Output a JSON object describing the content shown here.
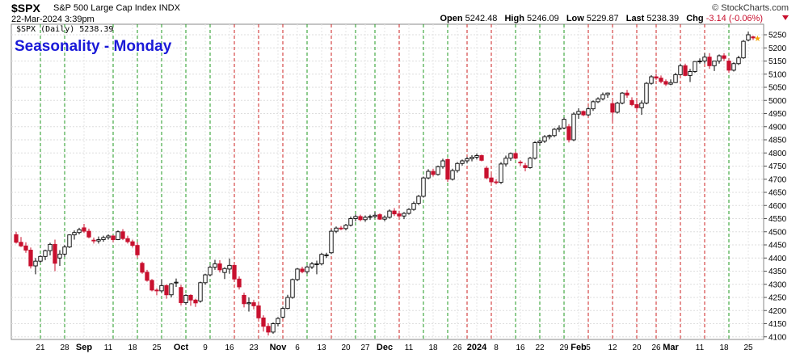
{
  "header": {
    "symbol": "$SPX",
    "description": "S&P 500 Large Cap Index  INDX",
    "datetime": "22-Mar-2024 3:39pm",
    "brand": "© StockCharts.com",
    "open_label": "Open",
    "open": "5242.48",
    "high_label": "High",
    "high": "5246.09",
    "low_label": "Low",
    "low": "5229.87",
    "last_label": "Last",
    "last": "5238.39",
    "chg_label": "Chg",
    "chg": "-3.14 (-0.06%)"
  },
  "chart_data": {
    "type": "candlestick",
    "title": "Seasonality - Monday",
    "legend": "$SPX (Daily) 5238.39",
    "ylim": [
      4090,
      5290
    ],
    "y_ticks": [
      4100,
      4150,
      4200,
      4250,
      4300,
      4350,
      4400,
      4450,
      4500,
      4550,
      4600,
      4650,
      4700,
      4750,
      4800,
      4850,
      4900,
      4950,
      5000,
      5050,
      5100,
      5150,
      5200,
      5250
    ],
    "x_labels": [
      {
        "i": 5,
        "label": "21"
      },
      {
        "i": 10,
        "label": "28"
      },
      {
        "i": 14,
        "label": "Sep",
        "bold": true
      },
      {
        "i": 19,
        "label": "11"
      },
      {
        "i": 24,
        "label": "18"
      },
      {
        "i": 29,
        "label": "25"
      },
      {
        "i": 34,
        "label": "Oct",
        "bold": true
      },
      {
        "i": 39,
        "label": "9"
      },
      {
        "i": 44,
        "label": "16"
      },
      {
        "i": 49,
        "label": "23"
      },
      {
        "i": 54,
        "label": "Nov",
        "bold": true
      },
      {
        "i": 58,
        "label": "6"
      },
      {
        "i": 63,
        "label": "13"
      },
      {
        "i": 68,
        "label": "20"
      },
      {
        "i": 72,
        "label": "27"
      },
      {
        "i": 76,
        "label": "Dec",
        "bold": true
      },
      {
        "i": 81,
        "label": "11"
      },
      {
        "i": 86,
        "label": "18"
      },
      {
        "i": 91,
        "label": "26"
      },
      {
        "i": 95,
        "label": "2024",
        "bold": true
      },
      {
        "i": 99,
        "label": "8"
      },
      {
        "i": 104,
        "label": "16"
      },
      {
        "i": 108,
        "label": "22"
      },
      {
        "i": 113,
        "label": "29"
      },
      {
        "i": 116,
        "label": "Feb",
        "bold": true
      },
      {
        "i": 118,
        "label": "5"
      },
      {
        "i": 123,
        "label": "12"
      },
      {
        "i": 128,
        "label": "20"
      },
      {
        "i": 132,
        "label": "26"
      },
      {
        "i": 135,
        "label": "Mar",
        "bold": true
      },
      {
        "i": 141,
        "label": "11"
      },
      {
        "i": 146,
        "label": "18"
      },
      {
        "i": 151,
        "label": "25"
      }
    ],
    "monday_lines": [
      {
        "i": 5,
        "color": "green"
      },
      {
        "i": 10,
        "color": "green"
      },
      {
        "i": 20,
        "color": "green"
      },
      {
        "i": 25,
        "color": "green"
      },
      {
        "i": 30,
        "color": "green"
      },
      {
        "i": 35,
        "color": "green"
      },
      {
        "i": 40,
        "color": "green"
      },
      {
        "i": 45,
        "color": "red"
      },
      {
        "i": 50,
        "color": "red"
      },
      {
        "i": 55,
        "color": "red"
      },
      {
        "i": 60,
        "color": "green"
      },
      {
        "i": 65,
        "color": "red"
      },
      {
        "i": 70,
        "color": "green"
      },
      {
        "i": 74,
        "color": "green"
      },
      {
        "i": 79,
        "color": "red"
      },
      {
        "i": 84,
        "color": "green"
      },
      {
        "i": 89,
        "color": "green"
      },
      {
        "i": 93,
        "color": "red"
      },
      {
        "i": 98,
        "color": "red"
      },
      {
        "i": 103,
        "color": "green"
      },
      {
        "i": 108,
        "color": "green"
      },
      {
        "i": 113,
        "color": "green"
      },
      {
        "i": 118,
        "color": "red"
      },
      {
        "i": 123,
        "color": "red"
      },
      {
        "i": 128,
        "color": "red"
      },
      {
        "i": 132,
        "color": "red"
      },
      {
        "i": 137,
        "color": "red"
      },
      {
        "i": 142,
        "color": "red"
      },
      {
        "i": 147,
        "color": "green"
      }
    ],
    "candles": [
      [
        4489,
        4500,
        4455,
        4460
      ],
      [
        4460,
        4480,
        4442,
        4446
      ],
      [
        4446,
        4460,
        4420,
        4430
      ],
      [
        4430,
        4440,
        4360,
        4370
      ],
      [
        4370,
        4400,
        4338,
        4388
      ],
      [
        4388,
        4410,
        4382,
        4406
      ],
      [
        4406,
        4432,
        4392,
        4428
      ],
      [
        4428,
        4458,
        4410,
        4452
      ],
      [
        4452,
        4470,
        4350,
        4380
      ],
      [
        4400,
        4430,
        4370,
        4415
      ],
      [
        4415,
        4450,
        4405,
        4442
      ],
      [
        4442,
        4490,
        4438,
        4488
      ],
      [
        4488,
        4505,
        4470,
        4497
      ],
      [
        4497,
        4515,
        4490,
        4508
      ],
      [
        4515,
        4530,
        4495,
        4502
      ],
      [
        4502,
        4512,
        4475,
        4480
      ],
      [
        4468,
        4478,
        4455,
        4465
      ],
      [
        4465,
        4482,
        4455,
        4470
      ],
      [
        4470,
        4485,
        4462,
        4478
      ],
      [
        4478,
        4490,
        4470,
        4484
      ],
      [
        4484,
        4487,
        4460,
        4470
      ],
      [
        4470,
        4505,
        4468,
        4500
      ],
      [
        4500,
        4510,
        4468,
        4474
      ],
      [
        4474,
        4485,
        4455,
        4462
      ],
      [
        4462,
        4470,
        4440,
        4448
      ],
      [
        4448,
        4460,
        4400,
        4412
      ],
      [
        4380,
        4386,
        4340,
        4346
      ],
      [
        4346,
        4355,
        4310,
        4315
      ],
      [
        4315,
        4320,
        4273,
        4278
      ],
      [
        4278,
        4285,
        4258,
        4275
      ],
      [
        4275,
        4318,
        4268,
        4295
      ],
      [
        4295,
        4300,
        4245,
        4260
      ],
      [
        4260,
        4305,
        4250,
        4302
      ],
      [
        4305,
        4322,
        4290,
        4308
      ],
      [
        4288,
        4298,
        4220,
        4230
      ],
      [
        4230,
        4262,
        4222,
        4258
      ],
      [
        4258,
        4262,
        4218,
        4240
      ],
      [
        4240,
        4245,
        4214,
        4229
      ],
      [
        4236,
        4310,
        4230,
        4306
      ],
      [
        4306,
        4340,
        4298,
        4336
      ],
      [
        4336,
        4372,
        4330,
        4365
      ],
      [
        4365,
        4393,
        4355,
        4378
      ],
      [
        4378,
        4392,
        4345,
        4355
      ],
      [
        4345,
        4365,
        4320,
        4360
      ],
      [
        4358,
        4398,
        4340,
        4372
      ],
      [
        4372,
        4380,
        4310,
        4320
      ],
      [
        4320,
        4330,
        4280,
        4290
      ],
      [
        4258,
        4268,
        4212,
        4226
      ],
      [
        4226,
        4250,
        4196,
        4230
      ],
      [
        4230,
        4240,
        4205,
        4218
      ],
      [
        4218,
        4230,
        4166,
        4172
      ],
      [
        4172,
        4182,
        4120,
        4140
      ],
      [
        4140,
        4152,
        4105,
        4118
      ],
      [
        4118,
        4155,
        4112,
        4150
      ],
      [
        4150,
        4175,
        4140,
        4170
      ],
      [
        4175,
        4215,
        4170,
        4208
      ],
      [
        4208,
        4260,
        4205,
        4250
      ],
      [
        4250,
        4322,
        4245,
        4318
      ],
      [
        4318,
        4362,
        4312,
        4358
      ],
      [
        4358,
        4367,
        4342,
        4348
      ],
      [
        4348,
        4372,
        4340,
        4366
      ],
      [
        4366,
        4385,
        4358,
        4378
      ],
      [
        4378,
        4390,
        4338,
        4378
      ],
      [
        4378,
        4420,
        4372,
        4414
      ],
      [
        4410,
        4420,
        4400,
        4412
      ],
      [
        4420,
        4510,
        4415,
        4502
      ],
      [
        4502,
        4520,
        4495,
        4514
      ],
      [
        4514,
        4522,
        4506,
        4512
      ],
      [
        4512,
        4530,
        4505,
        4525
      ],
      [
        4525,
        4558,
        4520,
        4550
      ],
      [
        4550,
        4566,
        4540,
        4558
      ],
      [
        4558,
        4565,
        4540,
        4546
      ],
      [
        4546,
        4562,
        4538,
        4555
      ],
      [
        4555,
        4565,
        4545,
        4558
      ],
      [
        4558,
        4575,
        4552,
        4563
      ],
      [
        4565,
        4570,
        4545,
        4548
      ],
      [
        4548,
        4562,
        4540,
        4555
      ],
      [
        4555,
        4585,
        4550,
        4579
      ],
      [
        4579,
        4590,
        4560,
        4568
      ],
      [
        4568,
        4580,
        4552,
        4560
      ],
      [
        4560,
        4575,
        4548,
        4570
      ],
      [
        4570,
        4590,
        4565,
        4585
      ],
      [
        4585,
        4615,
        4580,
        4608
      ],
      [
        4608,
        4640,
        4602,
        4635
      ],
      [
        4635,
        4710,
        4630,
        4705
      ],
      [
        4705,
        4738,
        4700,
        4730
      ],
      [
        4730,
        4740,
        4710,
        4718
      ],
      [
        4718,
        4752,
        4714,
        4748
      ],
      [
        4748,
        4778,
        4740,
        4770
      ],
      [
        4775,
        4780,
        4690,
        4700
      ],
      [
        4700,
        4740,
        4695,
        4733
      ],
      [
        4733,
        4765,
        4725,
        4760
      ],
      [
        4760,
        4775,
        4752,
        4770
      ],
      [
        4770,
        4785,
        4760,
        4778
      ],
      [
        4778,
        4792,
        4768,
        4784
      ],
      [
        4784,
        4798,
        4775,
        4790
      ],
      [
        4790,
        4794,
        4768,
        4772
      ],
      [
        4742,
        4750,
        4700,
        4705
      ],
      [
        4705,
        4718,
        4684,
        4690
      ],
      [
        4690,
        4700,
        4680,
        4688
      ],
      [
        4688,
        4765,
        4682,
        4758
      ],
      [
        4758,
        4790,
        4748,
        4780
      ],
      [
        4780,
        4802,
        4770,
        4798
      ],
      [
        4798,
        4805,
        4775,
        4780
      ],
      [
        4765,
        4772,
        4750,
        4762
      ],
      [
        4752,
        4762,
        4730,
        4744
      ],
      [
        4744,
        4785,
        4740,
        4780
      ],
      [
        4780,
        4845,
        4775,
        4839
      ],
      [
        4839,
        4850,
        4830,
        4845
      ],
      [
        4845,
        4868,
        4838,
        4862
      ],
      [
        4862,
        4870,
        4852,
        4866
      ],
      [
        4866,
        4895,
        4860,
        4890
      ],
      [
        4890,
        4905,
        4880,
        4895
      ],
      [
        4895,
        4935,
        4890,
        4928
      ],
      [
        4900,
        4910,
        4840,
        4850
      ],
      [
        4850,
        4955,
        4845,
        4948
      ],
      [
        4948,
        4970,
        4930,
        4958
      ],
      [
        4958,
        4962,
        4940,
        4945
      ],
      [
        4945,
        4975,
        4940,
        4968
      ],
      [
        4968,
        5000,
        4960,
        4995
      ],
      [
        4995,
        5012,
        4990,
        5006
      ],
      [
        5006,
        5030,
        5000,
        5022
      ],
      [
        5022,
        5030,
        5010,
        5028
      ],
      [
        4988,
        5002,
        4920,
        4955
      ],
      [
        4955,
        4995,
        4950,
        4990
      ],
      [
        4990,
        5032,
        4985,
        5028
      ],
      [
        5028,
        5040,
        5010,
        5020
      ],
      [
        5000,
        5012,
        4978,
        4984
      ],
      [
        4984,
        5000,
        4960,
        4972
      ],
      [
        4972,
        5000,
        4945,
        4990
      ],
      [
        4990,
        5070,
        4985,
        5065
      ],
      [
        5065,
        5096,
        5060,
        5090
      ],
      [
        5090,
        5102,
        5078,
        5085
      ],
      [
        5085,
        5095,
        5065,
        5072
      ],
      [
        5072,
        5080,
        5055,
        5062
      ],
      [
        5062,
        5080,
        5058,
        5068
      ],
      [
        5068,
        5105,
        5066,
        5098
      ],
      [
        5098,
        5140,
        5095,
        5132
      ],
      [
        5132,
        5140,
        5092,
        5095
      ],
      [
        5095,
        5120,
        5070,
        5110
      ],
      [
        5110,
        5150,
        5105,
        5148
      ],
      [
        5148,
        5160,
        5140,
        5150
      ],
      [
        5150,
        5180,
        5140,
        5165
      ],
      [
        5165,
        5180,
        5120,
        5132
      ],
      [
        5132,
        5150,
        5112,
        5150
      ],
      [
        5150,
        5175,
        5140,
        5170
      ],
      [
        5170,
        5180,
        5150,
        5160
      ],
      [
        5150,
        5160,
        5105,
        5115
      ],
      [
        5115,
        5145,
        5110,
        5140
      ],
      [
        5140,
        5170,
        5135,
        5162
      ],
      [
        5162,
        5230,
        5158,
        5225
      ],
      [
        5230,
        5262,
        5225,
        5250
      ],
      [
        5242,
        5246,
        5230,
        5238
      ]
    ]
  }
}
